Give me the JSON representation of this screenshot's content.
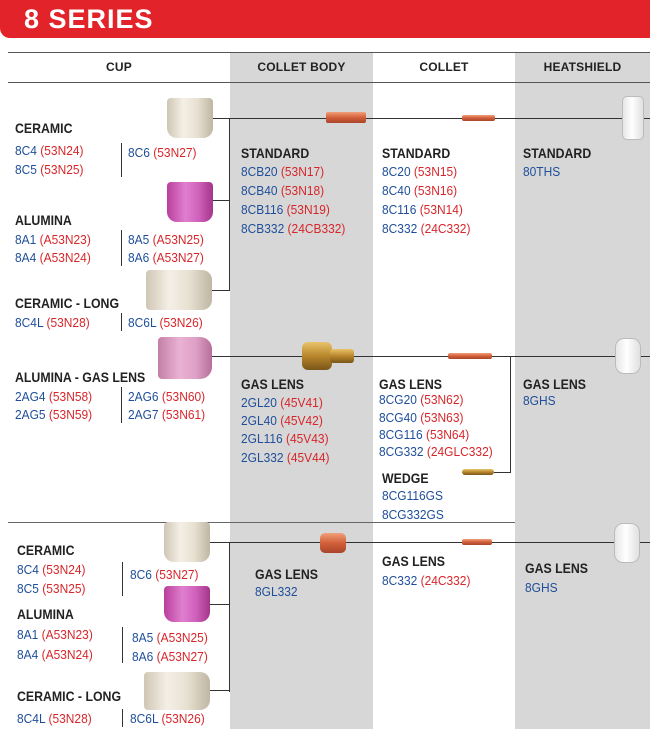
{
  "banner": {
    "title": "8 SERIES"
  },
  "colors": {
    "banner": "#e2232a",
    "blue_code": "#1f4e9a",
    "red_code": "#d7262a",
    "column_shade": "#d7d7d7"
  },
  "headers": {
    "cup": "CUP",
    "collet_body": "COLLET BODY",
    "collet": "COLLET",
    "heatshield": "HEATSHIELD"
  },
  "section1": {
    "cup": {
      "ceramic_label": "CERAMIC",
      "ceramic_left": [
        {
          "code": "8C4",
          "alt": "(53N24)"
        },
        {
          "code": "8C5",
          "alt": "(53N25)"
        }
      ],
      "ceramic_right": [
        {
          "code": "8C6",
          "alt": "(53N27)"
        }
      ],
      "alumina_label": "ALUMINA",
      "alumina_left": [
        {
          "code": "8A1",
          "alt": "(A53N23)"
        },
        {
          "code": "8A4",
          "alt": "(A53N24)"
        }
      ],
      "alumina_right": [
        {
          "code": "8A5",
          "alt": "(A53N25)"
        },
        {
          "code": "8A6",
          "alt": "(A53N27)"
        }
      ],
      "long_label": "CERAMIC - LONG",
      "long_left": {
        "code": "8C4L",
        "alt": "(53N28)"
      },
      "long_right": {
        "code": "8C6L",
        "alt": "(53N26)"
      }
    },
    "collet_body": {
      "label": "STANDARD",
      "items": [
        {
          "code": "8CB20",
          "alt": "(53N17)"
        },
        {
          "code": "8CB40",
          "alt": "(53N18)"
        },
        {
          "code": "8CB116",
          "alt": "(53N19)"
        },
        {
          "code": "8CB332",
          "alt": "(24CB332)"
        }
      ]
    },
    "collet": {
      "label": "STANDARD",
      "items": [
        {
          "code": "8C20",
          "alt": "(53N15)"
        },
        {
          "code": "8C40",
          "alt": "(53N16)"
        },
        {
          "code": "8C116",
          "alt": "(53N14)"
        },
        {
          "code": "8C332",
          "alt": "(24C332)"
        }
      ]
    },
    "heatshield": {
      "label": "STANDARD",
      "code": "80THS"
    }
  },
  "section2": {
    "cup": {
      "label": "ALUMINA - GAS LENS",
      "left": [
        {
          "code": "2AG4",
          "alt": "(53N58)"
        },
        {
          "code": "2AG5",
          "alt": "(53N59)"
        }
      ],
      "right": [
        {
          "code": "2AG6",
          "alt": "(53N60)"
        },
        {
          "code": "2AG7",
          "alt": "(53N61)"
        }
      ]
    },
    "collet_body": {
      "label": "GAS LENS",
      "items": [
        {
          "code": "2GL20",
          "alt": "(45V41)"
        },
        {
          "code": "2GL40",
          "alt": "(45V42)"
        },
        {
          "code": "2GL116",
          "alt": "(45V43)"
        },
        {
          "code": "2GL332",
          "alt": "(45V44)"
        }
      ]
    },
    "collet": {
      "label": "GAS LENS",
      "items": [
        {
          "code": "8CG20",
          "alt": "(53N62)"
        },
        {
          "code": "8CG40",
          "alt": "(53N63)"
        },
        {
          "code": "8CG116",
          "alt": "(53N64)"
        },
        {
          "code": "8CG332",
          "alt": "(24GLC332)"
        }
      ],
      "wedge_label": "WEDGE",
      "wedge_items": [
        "8CG116GS",
        "8CG332GS"
      ]
    },
    "heatshield": {
      "label": "GAS LENS",
      "code": "8GHS"
    }
  },
  "section3": {
    "cup": {
      "ceramic_label": "CERAMIC",
      "ceramic_left": [
        {
          "code": "8C4",
          "alt": "(53N24)"
        },
        {
          "code": "8C5",
          "alt": "(53N25)"
        }
      ],
      "ceramic_right": [
        {
          "code": "8C6",
          "alt": "(53N27)"
        }
      ],
      "alumina_label": "ALUMINA",
      "alumina_left": [
        {
          "code": "8A1",
          "alt": "(A53N23)"
        },
        {
          "code": "8A4",
          "alt": "(A53N24)"
        }
      ],
      "alumina_right": [
        {
          "code": "8A5",
          "alt": "(A53N25)"
        },
        {
          "code": "8A6",
          "alt": "(A53N27)"
        }
      ],
      "long_label": "CERAMIC - LONG",
      "long_left": {
        "code": "8C4L",
        "alt": "(53N28)"
      },
      "long_right": {
        "code": "8C6L",
        "alt": "(53N26)"
      }
    },
    "collet_body": {
      "label": "GAS LENS",
      "code": "8GL332"
    },
    "collet": {
      "label": "GAS LENS",
      "items": [
        {
          "code": "8C332",
          "alt": "(24C332)"
        }
      ]
    },
    "heatshield": {
      "label": "GAS LENS",
      "code": "8GHS"
    }
  }
}
